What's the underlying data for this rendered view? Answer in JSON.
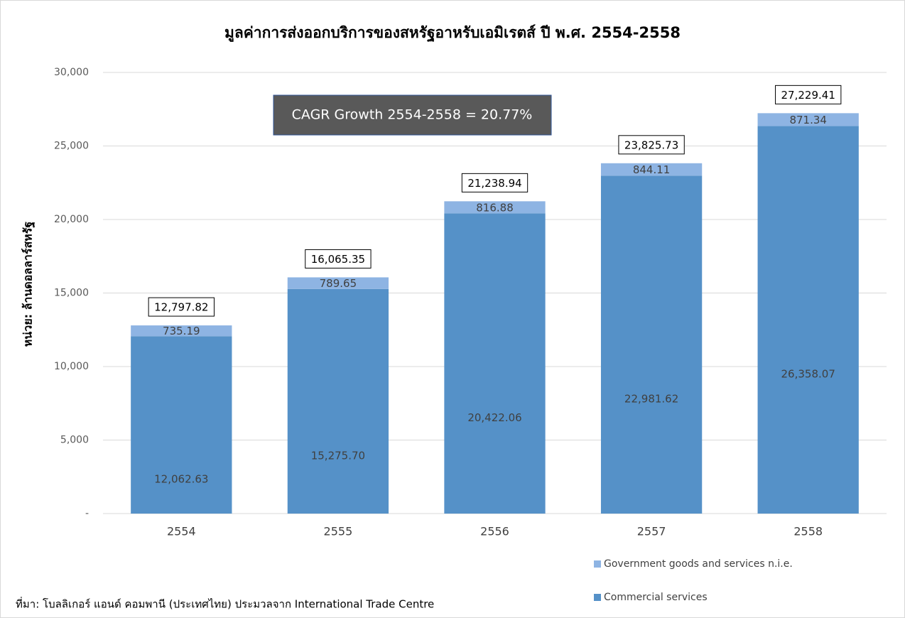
{
  "chart_data": {
    "type": "stacked_bar",
    "title": "มูลค่าการส่งออกบริการของสหรัฐอาหรับเอมิเรตส์ ปี พ.ศ. 2554-2558",
    "y_label": "หน่วย: ล้านดอลลาร์สหรัฐ",
    "annotation": "CAGR Growth 2554-2558 = 20.77%",
    "source": "ที่มา: โบลลิเกอร์ แอนด์ คอมพานี (ประเทศไทย) ประมวลจาก International Trade Centre",
    "categories": [
      "2554",
      "2555",
      "2556",
      "2557",
      "2558"
    ],
    "series": [
      {
        "name": "Commercial services",
        "color": "#5591c8",
        "values": [
          12062.63,
          15275.7,
          20422.06,
          22981.62,
          26358.07
        ],
        "value_labels": [
          "12,062.63",
          "15,275.70",
          "20,422.06",
          "22,981.62",
          "26,358.07"
        ]
      },
      {
        "name": "Government goods and services n.i.e.",
        "color": "#8eb4e3",
        "values": [
          735.19,
          789.65,
          816.88,
          844.11,
          871.34
        ],
        "value_labels": [
          "735.19",
          "789.65",
          "816.88",
          "844.11",
          "871.34"
        ]
      }
    ],
    "totals": [
      12797.82,
      16065.35,
      21238.94,
      23825.73,
      27229.41
    ],
    "totals_labels": [
      "12,797.82",
      "16,065.35",
      "21,238.94",
      "23,825.73",
      "27,229.41"
    ],
    "ylim": [
      0,
      30000
    ],
    "yticks": [
      {
        "value": 0,
        "label": "-"
      },
      {
        "value": 5000,
        "label": "5,000"
      },
      {
        "value": 10000,
        "label": "10,000"
      },
      {
        "value": 15000,
        "label": "15,000"
      },
      {
        "value": 20000,
        "label": "20,000"
      },
      {
        "value": 25000,
        "label": "25,000"
      },
      {
        "value": 30000,
        "label": "30,000"
      }
    ],
    "grid": true
  }
}
